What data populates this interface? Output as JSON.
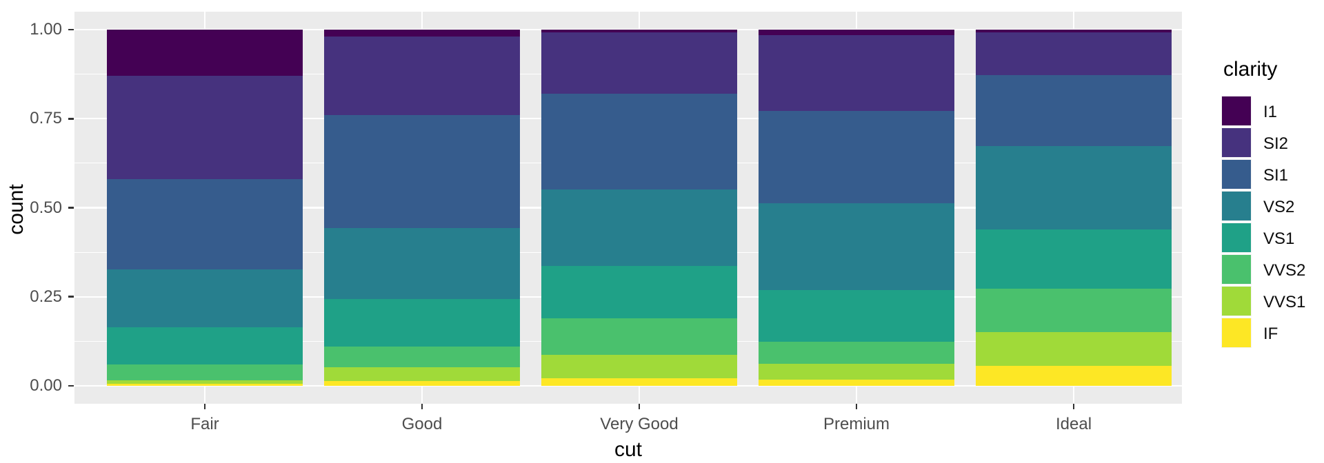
{
  "chart_data": {
    "type": "bar",
    "subtype": "stacked-fill",
    "title": "",
    "xlabel": "cut",
    "ylabel": "count",
    "categories": [
      "Fair",
      "Good",
      "Very Good",
      "Premium",
      "Ideal"
    ],
    "series": [
      {
        "name": "I1",
        "color": "#440154",
        "values": [
          0.1304,
          0.0196,
          0.007,
          0.0149,
          0.0068
        ]
      },
      {
        "name": "SI2",
        "color": "#46327E",
        "values": [
          0.2894,
          0.2203,
          0.1738,
          0.2138,
          0.1206
        ]
      },
      {
        "name": "SI1",
        "color": "#365C8D",
        "values": [
          0.2534,
          0.318,
          0.2682,
          0.2592,
          0.1987
        ]
      },
      {
        "name": "VS2",
        "color": "#277F8E",
        "values": [
          0.1621,
          0.1994,
          0.2145,
          0.2434,
          0.2353
        ]
      },
      {
        "name": "VS1",
        "color": "#1FA187",
        "values": [
          0.1056,
          0.1321,
          0.1469,
          0.1442,
          0.1665
        ]
      },
      {
        "name": "VVS2",
        "color": "#4AC16D",
        "values": [
          0.0429,
          0.0583,
          0.1022,
          0.0631,
          0.1209
        ]
      },
      {
        "name": "VVS1",
        "color": "#A0DA39",
        "values": [
          0.0106,
          0.0379,
          0.0653,
          0.0447,
          0.095
        ]
      },
      {
        "name": "IF",
        "color": "#FDE725",
        "values": [
          0.0056,
          0.0145,
          0.0222,
          0.0167,
          0.0562
        ]
      }
    ],
    "ylim": [
      0,
      1
    ],
    "y_major_ticks": [
      {
        "value": 0.0,
        "label": "0.00"
      },
      {
        "value": 0.25,
        "label": "0.25"
      },
      {
        "value": 0.5,
        "label": "0.50"
      },
      {
        "value": 0.75,
        "label": "0.75"
      },
      {
        "value": 1.0,
        "label": "1.00"
      }
    ],
    "y_minor_ticks": [
      0.125,
      0.375,
      0.625,
      0.875
    ],
    "grid": "on",
    "legend_title": "clarity",
    "legend_position": "right",
    "panel_background": "#EBEBEB",
    "gridline_color": "#FFFFFF",
    "tick_text_color": "#4D4D4D"
  }
}
